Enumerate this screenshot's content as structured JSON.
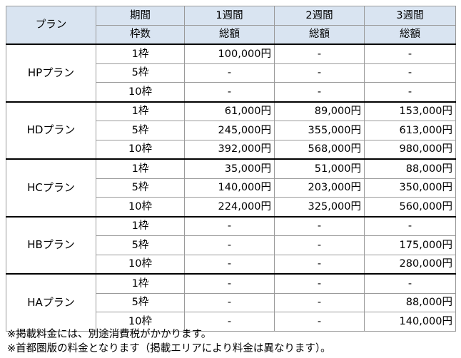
{
  "header": {
    "plan_label": "プラン",
    "period_label": "期間",
    "frames_label": "枠数",
    "periods": [
      "1週間",
      "2週間",
      "3週間"
    ],
    "total_label": "総額"
  },
  "plans": [
    {
      "name": "HPプラン",
      "rows": [
        {
          "frames": "1枠",
          "values": [
            "100,000円",
            "-",
            "-"
          ]
        },
        {
          "frames": "5枠",
          "values": [
            "-",
            "-",
            "-"
          ]
        },
        {
          "frames": "10枠",
          "values": [
            "-",
            "-",
            "-"
          ]
        }
      ]
    },
    {
      "name": "HDプラン",
      "rows": [
        {
          "frames": "1枠",
          "values": [
            "61,000円",
            "89,000円",
            "153,000円"
          ]
        },
        {
          "frames": "5枠",
          "values": [
            "245,000円",
            "355,000円",
            "613,000円"
          ]
        },
        {
          "frames": "10枠",
          "values": [
            "392,000円",
            "568,000円",
            "980,000円"
          ]
        }
      ]
    },
    {
      "name": "HCプラン",
      "rows": [
        {
          "frames": "1枠",
          "values": [
            "35,000円",
            "51,000円",
            "88,000円"
          ]
        },
        {
          "frames": "5枠",
          "values": [
            "140,000円",
            "203,000円",
            "350,000円"
          ]
        },
        {
          "frames": "10枠",
          "values": [
            "224,000円",
            "325,000円",
            "560,000円"
          ]
        }
      ]
    },
    {
      "name": "HBプラン",
      "rows": [
        {
          "frames": "1枠",
          "values": [
            "-",
            "-",
            "-"
          ]
        },
        {
          "frames": "5枠",
          "values": [
            "-",
            "-",
            "175,000円"
          ]
        },
        {
          "frames": "10枠",
          "values": [
            "-",
            "-",
            "280,000円"
          ]
        }
      ]
    },
    {
      "name": "HAプラン",
      "rows": [
        {
          "frames": "1枠",
          "values": [
            "-",
            "-",
            "-"
          ]
        },
        {
          "frames": "5枠",
          "values": [
            "-",
            "-",
            "88,000円"
          ]
        },
        {
          "frames": "10枠",
          "values": [
            "-",
            "-",
            "140,000円"
          ]
        }
      ]
    }
  ],
  "notes": [
    "※掲載料金には、別途消費税がかかります。",
    "※首都圏版の料金となります（掲載エリアにより料金は異なります）。"
  ]
}
